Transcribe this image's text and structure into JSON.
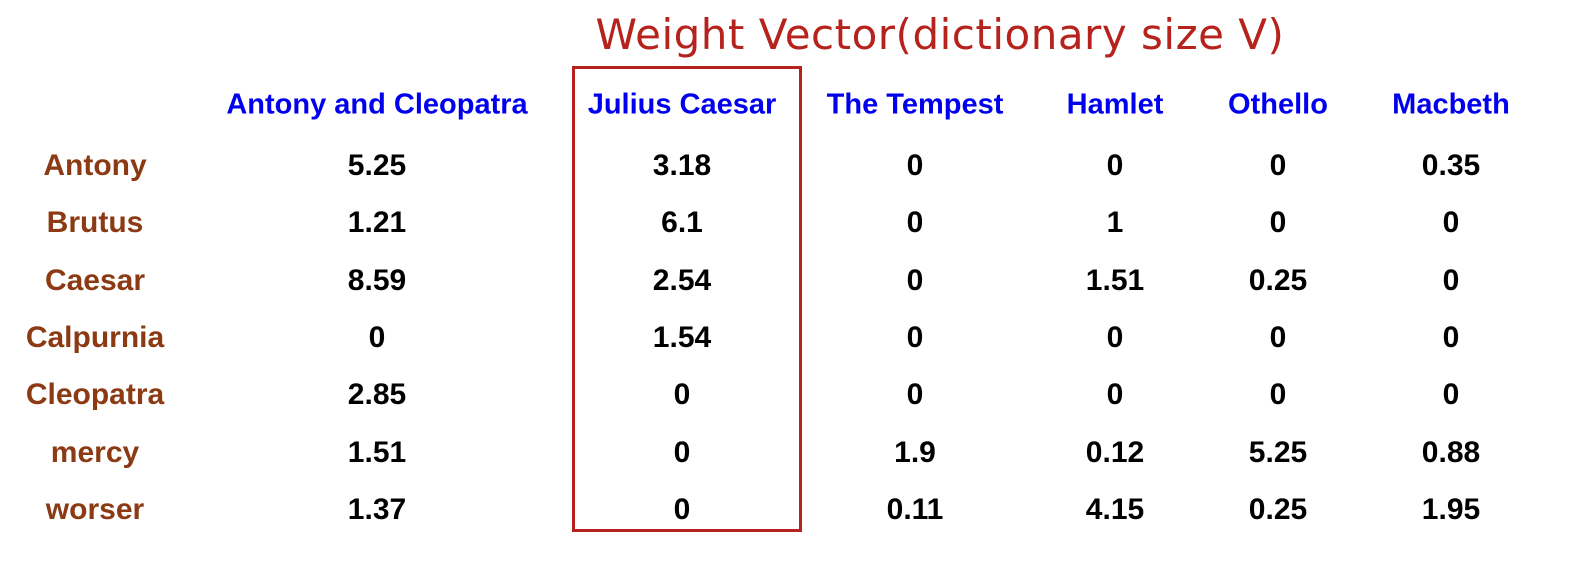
{
  "chart_data": {
    "type": "table",
    "title": "Weight Vector(dictionary size V)",
    "columns": [
      "Antony and Cleopatra",
      "Julius Caesar",
      "The Tempest",
      "Hamlet",
      "Othello",
      "Macbeth"
    ],
    "rows": [
      {
        "label": "Antony",
        "values": [
          "5.25",
          "3.18",
          "0",
          "0",
          "0",
          "0.35"
        ]
      },
      {
        "label": "Brutus",
        "values": [
          "1.21",
          "6.1",
          "0",
          "1",
          "0",
          "0"
        ]
      },
      {
        "label": "Caesar",
        "values": [
          "8.59",
          "2.54",
          "0",
          "1.51",
          "0.25",
          "0"
        ]
      },
      {
        "label": "Calpurnia",
        "values": [
          "0",
          "1.54",
          "0",
          "0",
          "0",
          "0"
        ]
      },
      {
        "label": "Cleopatra",
        "values": [
          "2.85",
          "0",
          "0",
          "0",
          "0",
          "0"
        ]
      },
      {
        "label": "mercy",
        "values": [
          "1.51",
          "0",
          "1.9",
          "0.12",
          "5.25",
          "0.88"
        ]
      },
      {
        "label": "worser",
        "values": [
          "1.37",
          "0",
          "0.11",
          "4.15",
          "0.25",
          "1.95"
        ]
      }
    ],
    "highlighted_column": "Julius Caesar",
    "colors": {
      "title": "#b5231c",
      "highlight_border": "#b5231c",
      "column_header": "#0000ee",
      "row_label": "#8b3a14",
      "value": "#000000"
    }
  }
}
